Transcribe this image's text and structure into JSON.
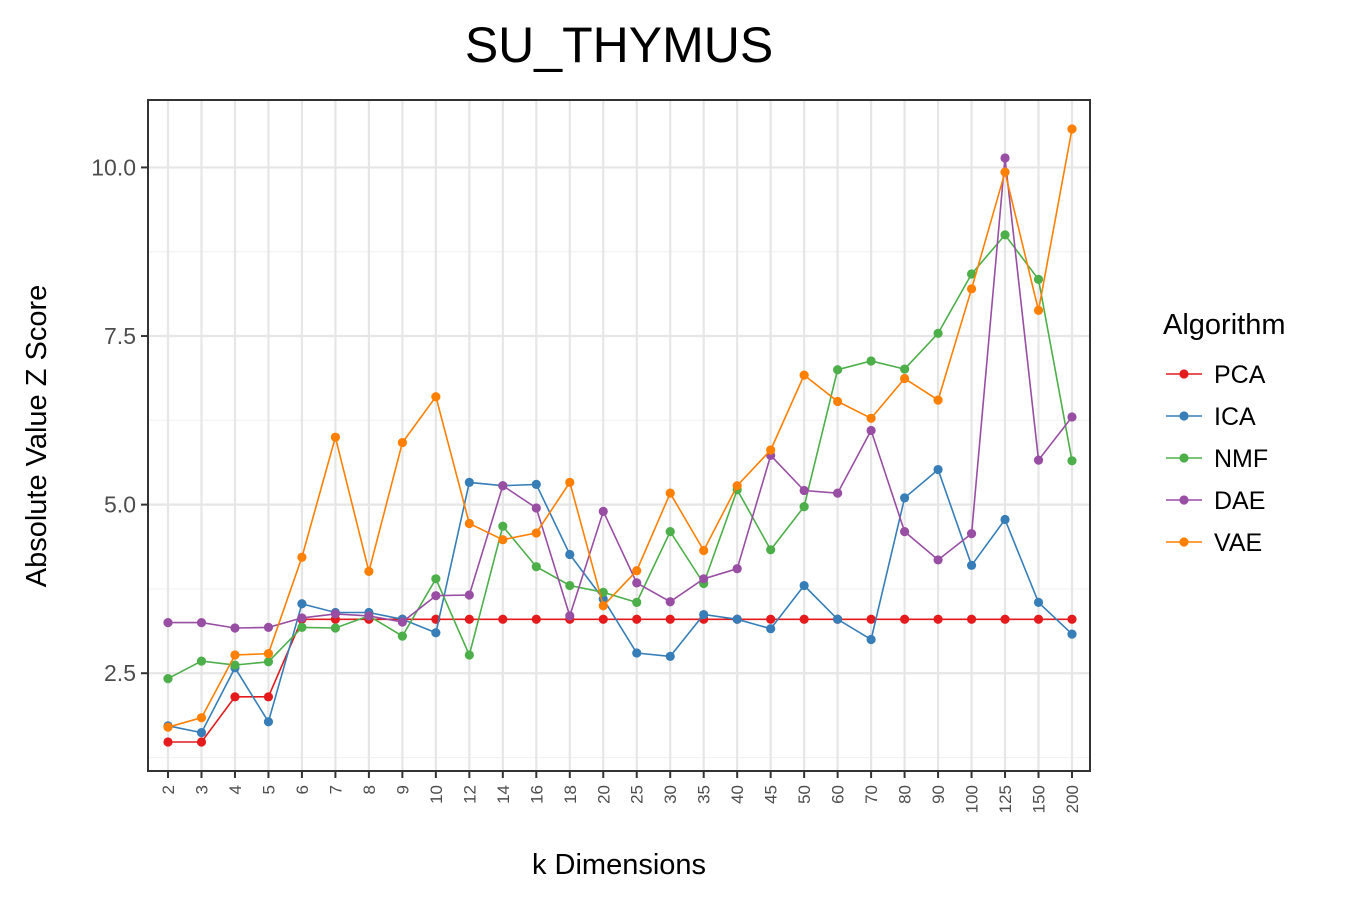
{
  "chart_data": {
    "type": "line",
    "title": "SU_THYMUS",
    "xlabel": "k Dimensions",
    "ylabel": "Absolute Value Z Score",
    "categories": [
      "2",
      "3",
      "4",
      "5",
      "6",
      "7",
      "8",
      "9",
      "10",
      "12",
      "14",
      "16",
      "18",
      "20",
      "25",
      "30",
      "35",
      "40",
      "45",
      "50",
      "60",
      "70",
      "80",
      "90",
      "100",
      "125",
      "150",
      "200"
    ],
    "yticks": [
      2.5,
      5.0,
      7.5,
      10.0
    ],
    "ytick_labels": [
      "2.5",
      "5.0",
      "7.5",
      "10.0"
    ],
    "ylim": [
      1.05,
      11.0
    ],
    "grid": true,
    "legend_title": "Algorithm",
    "legend_position": "right",
    "series": [
      {
        "name": "PCA",
        "color": "#e41a1c",
        "values": [
          1.48,
          1.48,
          2.15,
          2.15,
          3.3,
          3.3,
          3.3,
          3.3,
          3.3,
          3.3,
          3.3,
          3.3,
          3.3,
          3.3,
          3.3,
          3.3,
          3.3,
          3.3,
          3.3,
          3.3,
          3.3,
          3.3,
          3.3,
          3.3,
          3.3,
          3.3,
          3.3,
          3.3
        ]
      },
      {
        "name": "ICA",
        "color": "#377eb8",
        "values": [
          1.72,
          1.62,
          2.58,
          1.78,
          3.53,
          3.4,
          3.4,
          3.3,
          3.1,
          5.33,
          5.28,
          5.3,
          4.26,
          3.6,
          2.8,
          2.75,
          3.37,
          3.3,
          3.16,
          3.8,
          3.3,
          3.0,
          5.1,
          5.52,
          4.1,
          4.78,
          3.55,
          3.08
        ]
      },
      {
        "name": "NMF",
        "color": "#4daf4a",
        "values": [
          2.42,
          2.68,
          2.62,
          2.67,
          3.18,
          3.17,
          3.35,
          3.05,
          3.9,
          2.77,
          4.68,
          4.08,
          3.8,
          3.7,
          3.55,
          4.6,
          3.83,
          5.22,
          4.33,
          4.97,
          7.0,
          7.13,
          7.01,
          7.54,
          8.42,
          9.0,
          8.34,
          5.65
        ]
      },
      {
        "name": "DAE",
        "color": "#984ea3",
        "values": [
          3.25,
          3.25,
          3.17,
          3.18,
          3.32,
          3.38,
          3.35,
          3.26,
          3.65,
          3.66,
          5.28,
          4.95,
          3.35,
          4.9,
          3.84,
          3.56,
          3.9,
          4.05,
          5.73,
          5.21,
          5.17,
          6.1,
          4.6,
          4.18,
          4.57,
          10.14,
          5.66,
          6.3
        ]
      },
      {
        "name": "VAE",
        "color": "#ff7f00",
        "values": [
          1.7,
          1.84,
          2.77,
          2.79,
          4.22,
          6.0,
          4.01,
          5.92,
          6.6,
          4.72,
          4.48,
          4.58,
          5.33,
          3.5,
          4.02,
          5.17,
          4.32,
          5.28,
          5.81,
          6.92,
          6.53,
          6.28,
          6.87,
          6.55,
          8.2,
          9.93,
          7.88,
          10.57
        ]
      }
    ]
  }
}
